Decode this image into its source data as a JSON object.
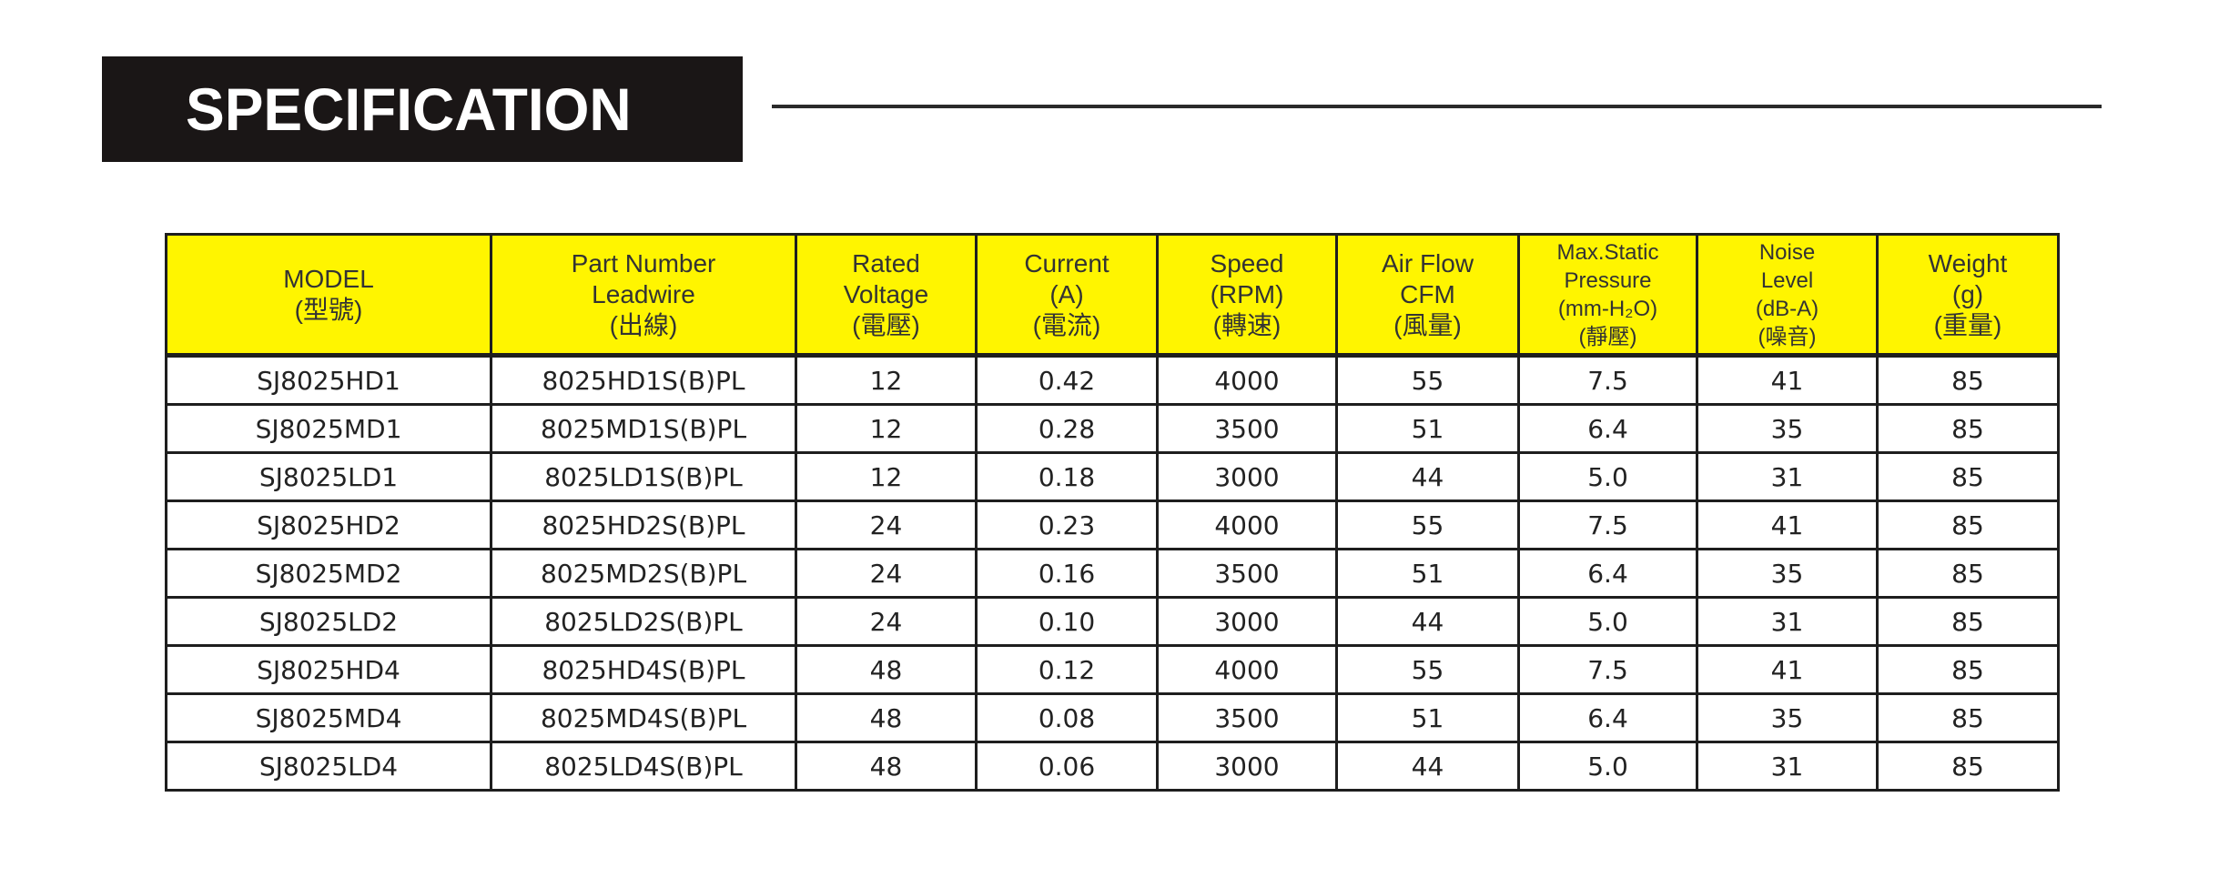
{
  "title": "SPECIFICATION",
  "table": {
    "headers": [
      {
        "lines": [
          "MODEL",
          "(型號)"
        ]
      },
      {
        "lines": [
          "Part Number",
          "Leadwire",
          "(出線)"
        ]
      },
      {
        "lines": [
          "Rated",
          "Voltage",
          "(電壓)"
        ]
      },
      {
        "lines": [
          "Current",
          "(A)",
          "(電流)"
        ]
      },
      {
        "lines": [
          "Speed",
          "(RPM)",
          "(轉速)"
        ]
      },
      {
        "lines": [
          "Air Flow",
          "CFM",
          "(風量)"
        ]
      },
      {
        "lines": [
          "Max.Static",
          "Pressure",
          "(mm-H₂O)",
          "(靜壓)"
        ]
      },
      {
        "lines": [
          "Noise",
          "Level",
          "(dB-A)",
          "(噪音)"
        ]
      },
      {
        "lines": [
          "Weight",
          "(g)",
          "(重量)"
        ]
      }
    ],
    "rows": [
      [
        "SJ8025HD1",
        "8025HD1S(B)PL",
        "12",
        "0.42",
        "4000",
        "55",
        "7.5",
        "41",
        "85"
      ],
      [
        "SJ8025MD1",
        "8025MD1S(B)PL",
        "12",
        "0.28",
        "3500",
        "51",
        "6.4",
        "35",
        "85"
      ],
      [
        "SJ8025LD1",
        "8025LD1S(B)PL",
        "12",
        "0.18",
        "3000",
        "44",
        "5.0",
        "31",
        "85"
      ],
      [
        "SJ8025HD2",
        "8025HD2S(B)PL",
        "24",
        "0.23",
        "4000",
        "55",
        "7.5",
        "41",
        "85"
      ],
      [
        "SJ8025MD2",
        "8025MD2S(B)PL",
        "24",
        "0.16",
        "3500",
        "51",
        "6.4",
        "35",
        "85"
      ],
      [
        "SJ8025LD2",
        "8025LD2S(B)PL",
        "24",
        "0.10",
        "3000",
        "44",
        "5.0",
        "31",
        "85"
      ],
      [
        "SJ8025HD4",
        "8025HD4S(B)PL",
        "48",
        "0.12",
        "4000",
        "55",
        "7.5",
        "41",
        "85"
      ],
      [
        "SJ8025MD4",
        "8025MD4S(B)PL",
        "48",
        "0.08",
        "3500",
        "51",
        "6.4",
        "35",
        "85"
      ],
      [
        "SJ8025LD4",
        "8025LD4S(B)PL",
        "48",
        "0.06",
        "3000",
        "44",
        "5.0",
        "31",
        "85"
      ]
    ]
  },
  "colors": {
    "header_bg": "#fff500",
    "title_bg": "#1a1616"
  }
}
